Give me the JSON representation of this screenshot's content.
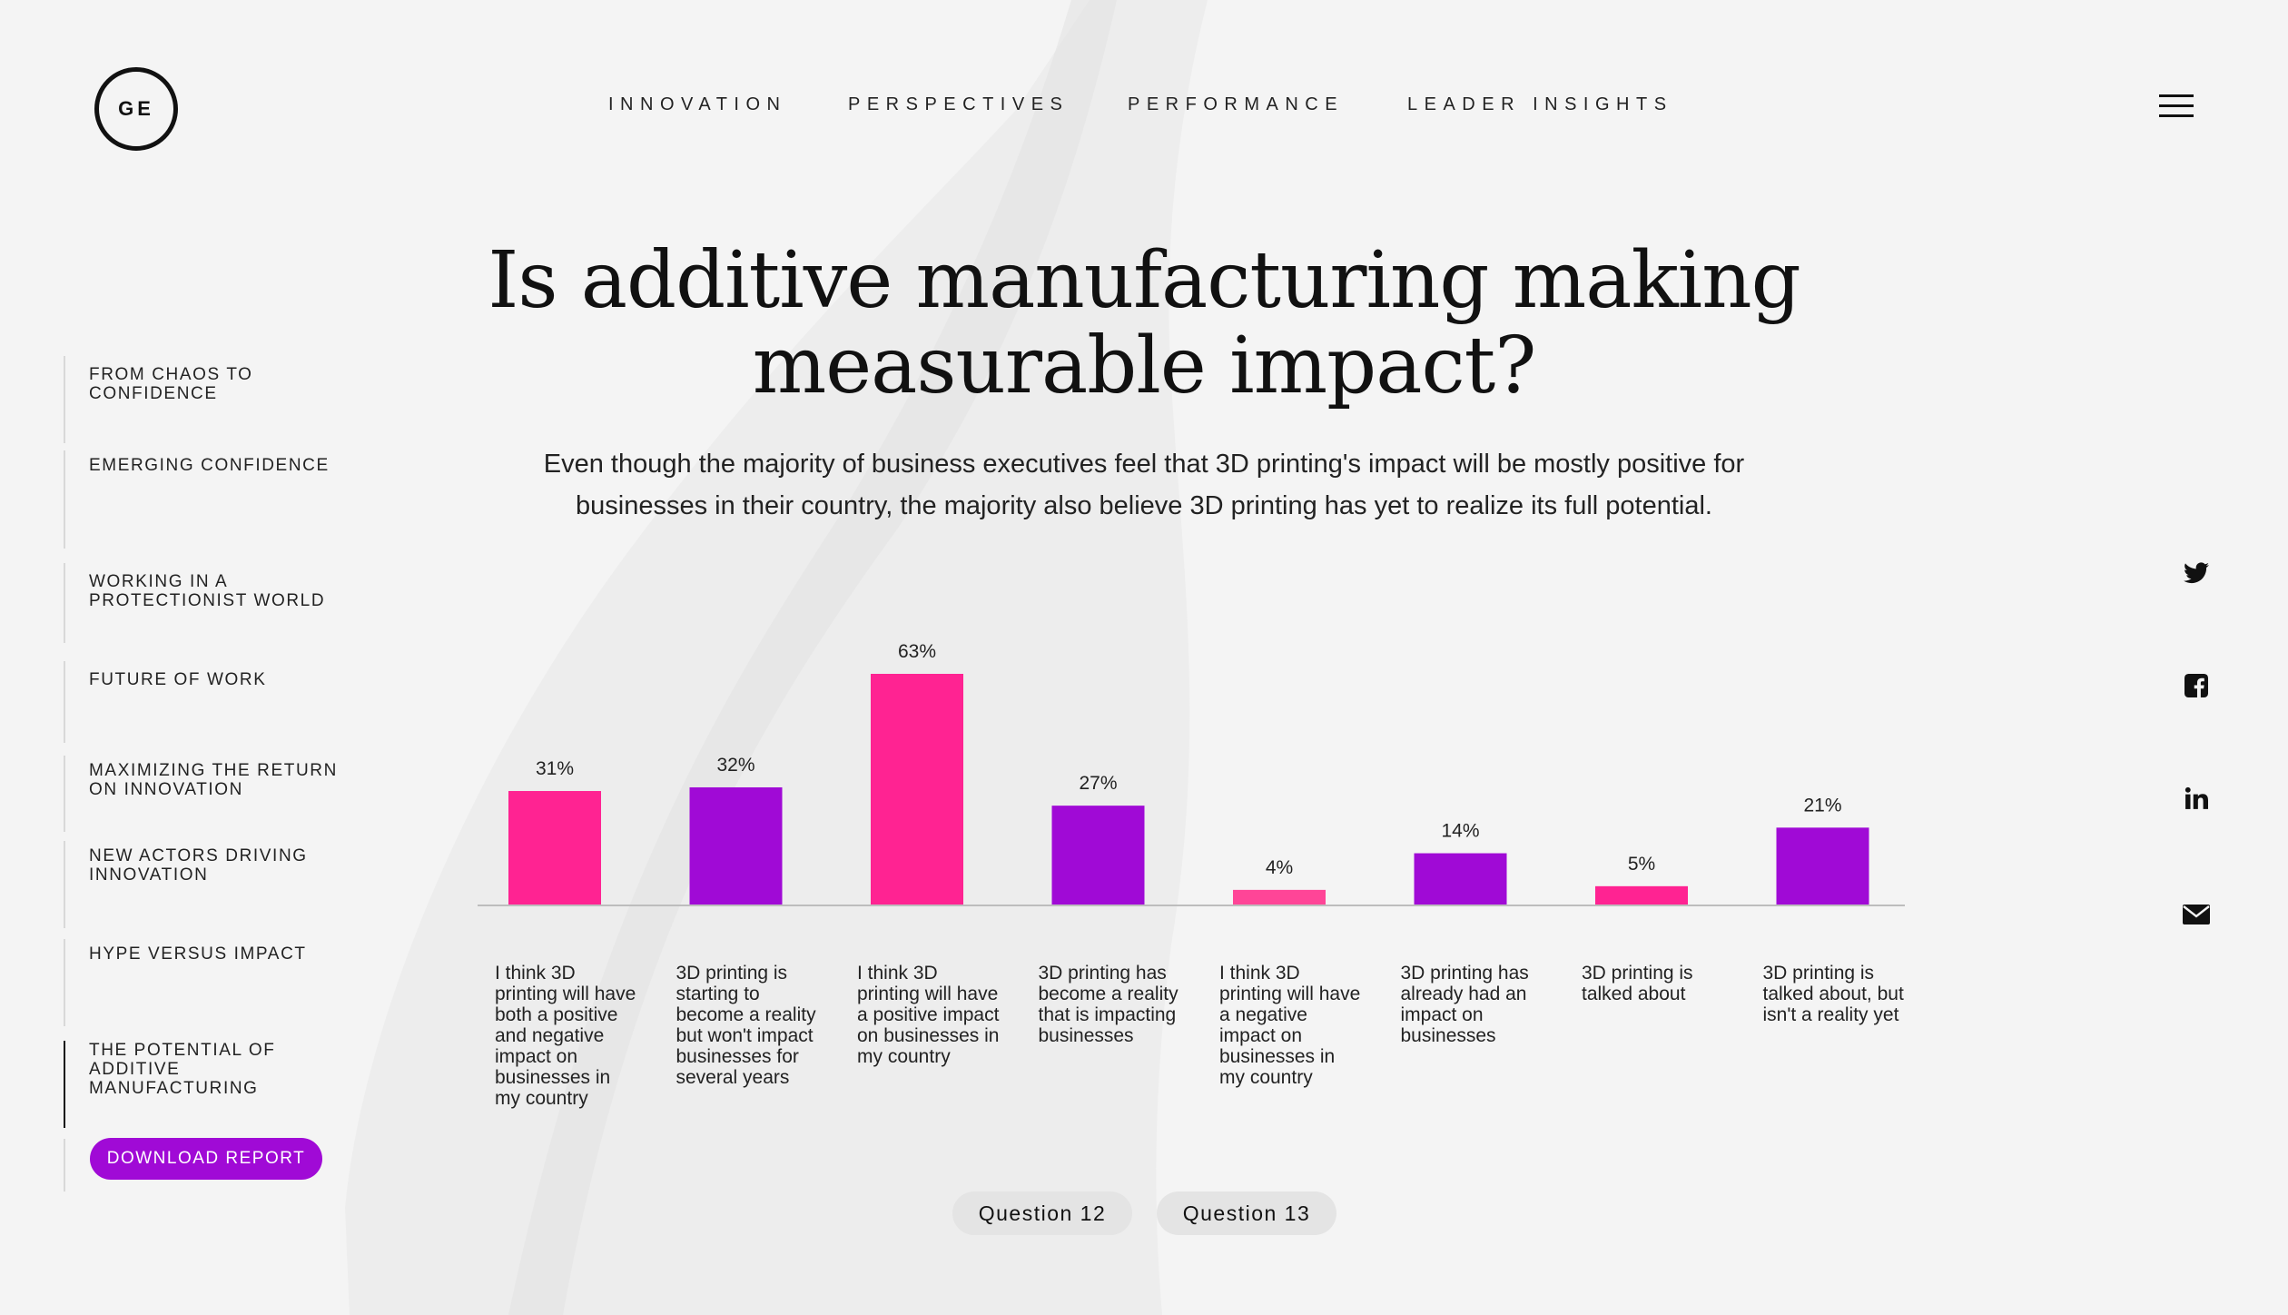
{
  "brand": {
    "logo_text": "GE"
  },
  "nav": {
    "items": [
      {
        "label": "INNOVATION"
      },
      {
        "label": "PERSPECTIVES"
      },
      {
        "label": "PERFORMANCE"
      },
      {
        "label": "LEADER INSIGHTS"
      }
    ]
  },
  "menu_icon": "hamburger-icon",
  "title": "Is additive manufacturing making measurable impact?",
  "subtitle": "Even though the majority of business executives feel that 3D printing's impact will be mostly positive for businesses in their country, the majority also believe 3D printing has yet to realize its full potential.",
  "sidebar": {
    "items": [
      {
        "label": "FROM CHAOS TO CONFIDENCE"
      },
      {
        "label": "EMERGING CONFIDENCE"
      },
      {
        "label": "WORKING IN A PROTECTIONIST WORLD"
      },
      {
        "label": "FUTURE OF WORK"
      },
      {
        "label": "MAXIMIZING THE RETURN ON INNOVATION"
      },
      {
        "label": "NEW ACTORS DRIVING INNOVATION"
      },
      {
        "label": "HYPE VERSUS IMPACT"
      },
      {
        "label": "THE POTENTIAL OF ADDITIVE MANUFACTURING",
        "active": true
      }
    ],
    "download_label": "DOWNLOAD REPORT"
  },
  "social": [
    "twitter-icon",
    "facebook-icon",
    "linkedin-icon",
    "email-icon"
  ],
  "colors": {
    "pink": "#ff2392",
    "pink_light": "#ff4597",
    "purple": "#a00ad6",
    "download_button": "#a00ad6",
    "axis": "#bdbdbd"
  },
  "chart_data": {
    "type": "bar",
    "categories": [
      "I think 3D printing will have both a positive and negative impact on businesses in my country",
      "3D printing is starting to become a reality but won't impact businesses for several years",
      "I think 3D printing will have a positive impact on businesses in my country",
      "3D printing has become a reality that is impacting businesses",
      "I think 3D printing will have a negative impact on businesses in my country",
      "3D printing has already had an impact on businesses",
      "3D printing is talked about",
      "3D printing is talked about, but isn't a reality yet"
    ],
    "values": [
      31,
      32,
      63,
      27,
      4,
      14,
      5,
      21
    ],
    "value_labels": [
      "31%",
      "32%",
      "63%",
      "27%",
      "4%",
      "14%",
      "5%",
      "21%"
    ],
    "bar_colors": [
      "#ff2392",
      "#a00ad6",
      "#ff2392",
      "#a00ad6",
      "#ff4597",
      "#a00ad6",
      "#ff2392",
      "#a00ad6"
    ],
    "ylim": [
      0,
      63
    ],
    "grid": false,
    "legend": "none"
  },
  "tabs": [
    {
      "label": "Question 12"
    },
    {
      "label": "Question 13"
    }
  ]
}
